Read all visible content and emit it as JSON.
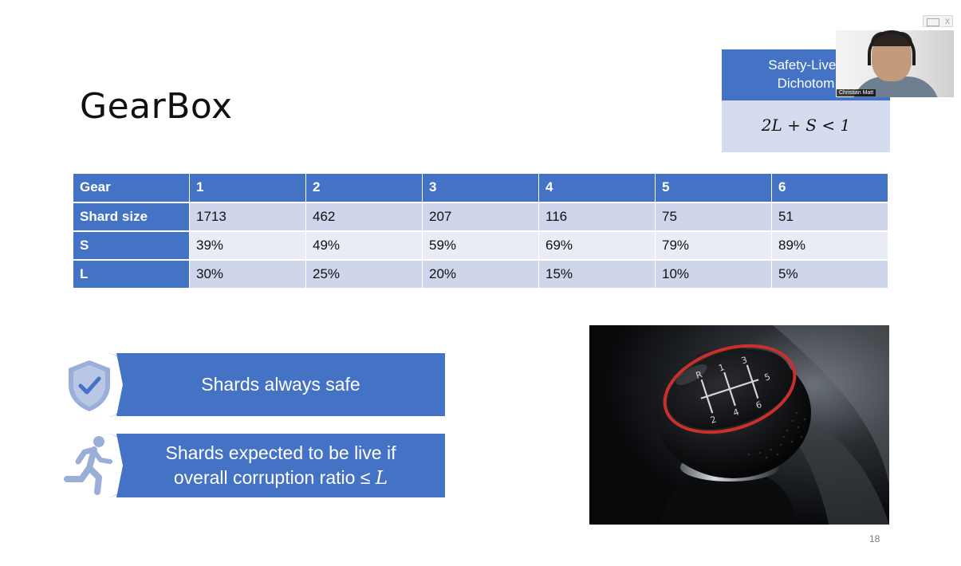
{
  "slide": {
    "title": "GearBox",
    "page_number": "18"
  },
  "safety_liveness": {
    "heading_line1": "Safety-Liven",
    "heading_line2": "Dichotom",
    "formula": "2L + S < 1"
  },
  "webcam": {
    "participant_name": "Christian Matt",
    "controls_label": "X"
  },
  "gear_table": {
    "header": [
      "Gear",
      "1",
      "2",
      "3",
      "4",
      "5",
      "6"
    ],
    "rows": [
      {
        "label": "Shard size",
        "values": [
          "1713",
          "462",
          "207",
          "116",
          "75",
          "51"
        ]
      },
      {
        "label": "S",
        "values": [
          "39%",
          "49%",
          "59%",
          "69%",
          "79%",
          "89%"
        ]
      },
      {
        "label": "L",
        "values": [
          "30%",
          "25%",
          "20%",
          "15%",
          "10%",
          "5%"
        ]
      }
    ]
  },
  "banners": {
    "safe_text": "Shards always safe",
    "live_line1": "Shards expected to be live if",
    "live_line2_text": "overall corruption ratio ≤ ",
    "live_line2_symbol": "L"
  },
  "icons": {
    "shield": "shield-check-icon",
    "runner": "running-person-icon"
  },
  "colors": {
    "accent": "#4472c4",
    "table_band_dark": "#cfd5ea",
    "table_band_light": "#e9ebf5",
    "formula_bg": "#d6dcef"
  }
}
